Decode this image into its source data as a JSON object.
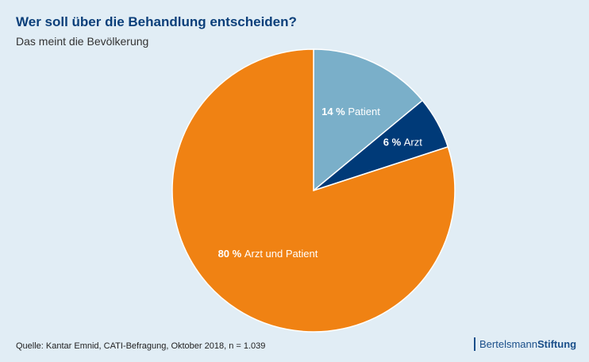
{
  "chart_data": {
    "type": "pie",
    "title": "Wer soll über die Behandlung entscheiden?",
    "subtitle": "Das meint die Bevölkerung",
    "start": "top, clockwise",
    "slices": [
      {
        "label": "Patient",
        "value": 14,
        "pct_label": "14 %",
        "color": "#7aafc9"
      },
      {
        "label": "Arzt",
        "value": 6,
        "pct_label": "6 %",
        "color": "#003a78"
      },
      {
        "label": "Arzt und Patient",
        "value": 80,
        "pct_label": "80 %",
        "color": "#f08213"
      }
    ]
  },
  "source": "Quelle: Kantar Emnid, CATI-Befragung, Oktober 2018, n = 1.039",
  "logo": {
    "part1": "Bertelsmann",
    "part2": "Stiftung"
  }
}
